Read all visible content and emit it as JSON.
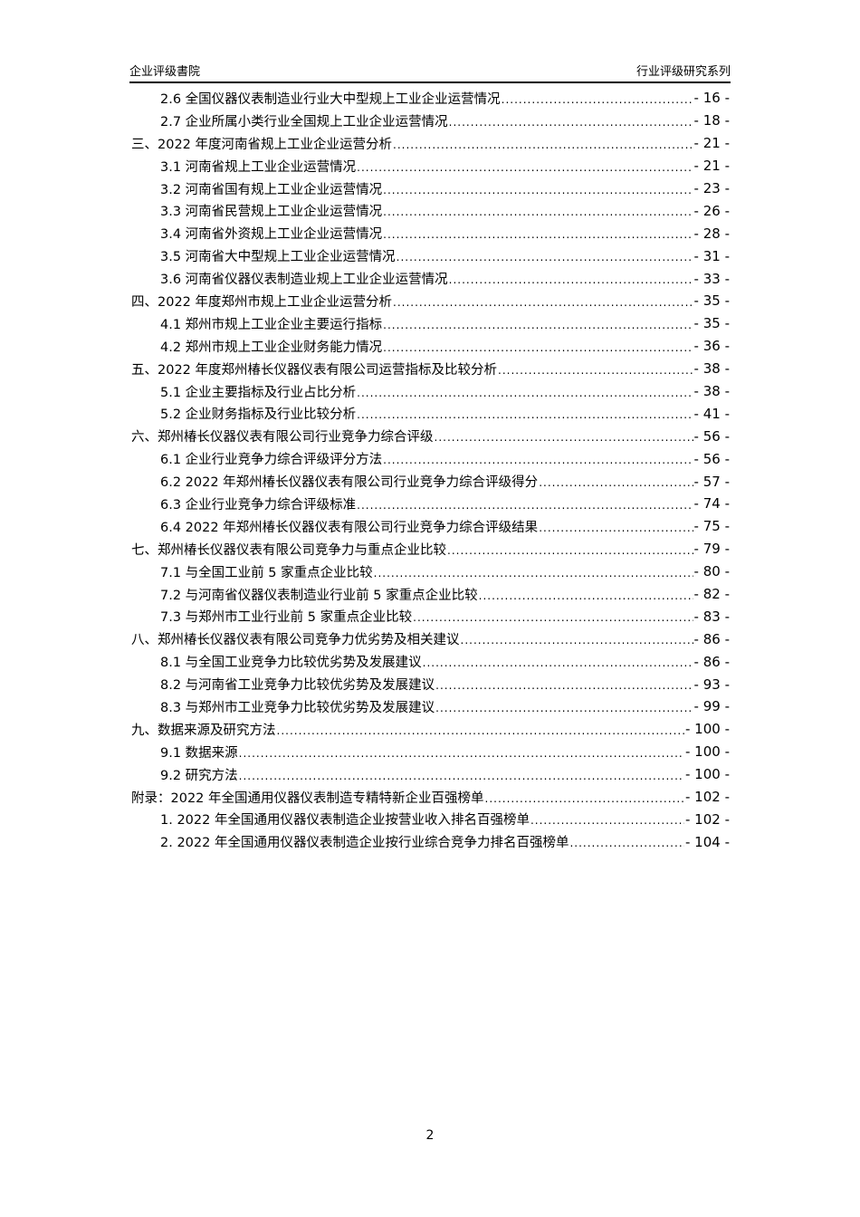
{
  "header": {
    "left": "企业评级書院",
    "right": "行业评级研究系列"
  },
  "toc": [
    {
      "level": 2,
      "title": "2.6  全国仪器仪表制造业行业大中型规上工业企业运营情况",
      "page": "- 16 -"
    },
    {
      "level": 2,
      "title": "2.7  企业所属小类行业全国规上工业企业运营情况",
      "page": "- 18 -"
    },
    {
      "level": 1,
      "title": "三、2022 年度河南省规上工业企业运营分析",
      "page": "- 21 -"
    },
    {
      "level": 2,
      "title": "3.1  河南省规上工业企业运营情况",
      "page": "- 21 -"
    },
    {
      "level": 2,
      "title": "3.2  河南省国有规上工业企业运营情况",
      "page": "- 23 -"
    },
    {
      "level": 2,
      "title": "3.3  河南省民营规上工业企业运营情况",
      "page": "- 26 -"
    },
    {
      "level": 2,
      "title": "3.4  河南省外资规上工业企业运营情况",
      "page": "- 28 -"
    },
    {
      "level": 2,
      "title": "3.5  河南省大中型规上工业企业运营情况",
      "page": "- 31 -"
    },
    {
      "level": 2,
      "title": "3.6  河南省仪器仪表制造业规上工业企业运营情况",
      "page": "- 33 -"
    },
    {
      "level": 1,
      "title": "四、2022 年度郑州市规上工业企业运营分析",
      "page": "- 35 -"
    },
    {
      "level": 2,
      "title": "4.1  郑州市规上工业企业主要运行指标",
      "page": "- 35 -"
    },
    {
      "level": 2,
      "title": "4.2  郑州市规上工业企业财务能力情况",
      "page": "- 36 -"
    },
    {
      "level": 1,
      "title": "五、2022 年度郑州椿长仪器仪表有限公司运营指标及比较分析",
      "page": "- 38 -"
    },
    {
      "level": 2,
      "title": "5.1  企业主要指标及行业占比分析",
      "page": "- 38 -"
    },
    {
      "level": 2,
      "title": "5.2  企业财务指标及行业比较分析",
      "page": "- 41 -"
    },
    {
      "level": 1,
      "title": "六、郑州椿长仪器仪表有限公司行业竞争力综合评级",
      "page": "- 56 -"
    },
    {
      "level": 2,
      "title": "6.1  企业行业竞争力综合评级评分方法",
      "page": "- 56 -"
    },
    {
      "level": 2,
      "title": "6.2  2022 年郑州椿长仪器仪表有限公司行业竞争力综合评级得分",
      "page": "- 57 -"
    },
    {
      "level": 2,
      "title": "6.3  企业行业竞争力综合评级标准",
      "page": "- 74 -"
    },
    {
      "level": 2,
      "title": "6.4  2022 年郑州椿长仪器仪表有限公司行业竞争力综合评级结果",
      "page": "- 75 -"
    },
    {
      "level": 1,
      "title": "七、郑州椿长仪器仪表有限公司竞争力与重点企业比较",
      "page": "- 79 -"
    },
    {
      "level": 2,
      "title": "7.1  与全国工业前 5 家重点企业比较",
      "page": "- 80 -"
    },
    {
      "level": 2,
      "title": "7.2  与河南省仪器仪表制造业行业前 5 家重点企业比较",
      "page": "- 82 -"
    },
    {
      "level": 2,
      "title": "7.3  与郑州市工业行业前 5 家重点企业比较",
      "page": "- 83 -"
    },
    {
      "level": 1,
      "title": "八、郑州椿长仪器仪表有限公司竞争力优劣势及相关建议",
      "page": "- 86 -"
    },
    {
      "level": 2,
      "title": "8.1  与全国工业竞争力比较优劣势及发展建议",
      "page": "- 86 -"
    },
    {
      "level": 2,
      "title": "8.2  与河南省工业竞争力比较优劣势及发展建议",
      "page": "- 93 -"
    },
    {
      "level": 2,
      "title": "8.3  与郑州市工业竞争力比较优劣势及发展建议",
      "page": "- 99 -"
    },
    {
      "level": 1,
      "title": "九、数据来源及研究方法",
      "page": "- 100 -"
    },
    {
      "level": 2,
      "title": "9.1  数据来源",
      "page": "- 100 -"
    },
    {
      "level": 2,
      "title": "9.2  研究方法",
      "page": "- 100 -"
    },
    {
      "level": 1,
      "title": "附录：2022 年全国通用仪器仪表制造专精特新企业百强榜单",
      "page": "- 102 -"
    },
    {
      "level": 2,
      "title": "1.  2022 年全国通用仪器仪表制造企业按营业收入排名百强榜单",
      "page": "- 102 -"
    },
    {
      "level": 2,
      "title": "2.  2022 年全国通用仪器仪表制造企业按行业综合竞争力排名百强榜单",
      "page": "- 104 -"
    }
  ],
  "footer": {
    "page_number": "2"
  }
}
